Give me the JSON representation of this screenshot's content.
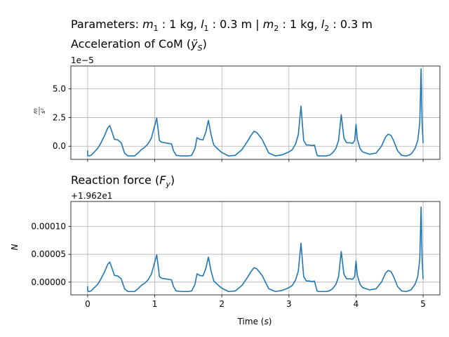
{
  "figure": {
    "suptitle": "Parameters: m₁ : 1 kg, l₁ : 0.3 m | m₂ : 1 kg, l₂ : 0.3 m",
    "suptitle_parts": {
      "p1": "Parameters: ",
      "m1_sym": "m",
      "m1_sub": "1",
      "m1_val": " :  1 kg, ",
      "l1_sym": "l",
      "l1_sub": "1",
      "l1_val": " :  0.3 m | ",
      "m2_sym": "m",
      "m2_sub": "2",
      "m2_val": " :  1 kg, ",
      "l2_sym": "l",
      "l2_sub": "2",
      "l2_val": " :  0.3 m"
    }
  },
  "chart_data": [
    {
      "type": "line",
      "title": "Acceleration of CoM (ÿS)",
      "title_parts": {
        "pre": "Acceleration of CoM (",
        "sym": "ÿ",
        "sub": "S",
        "post": ")"
      },
      "xlabel": "",
      "ylabel": "m/s²",
      "ylabel_parts": {
        "num": "m",
        "den": "s²"
      },
      "offset_text": "1e−5",
      "xlim": [
        -0.25,
        5.25
      ],
      "ylim": [
        -1.15,
        7.0
      ],
      "xticks": [
        0,
        1,
        2,
        3,
        4,
        5
      ],
      "xtick_labels": [
        "",
        "",
        "",
        "",
        "",
        ""
      ],
      "yticks": [
        0.0,
        2.5,
        5.0
      ],
      "ytick_labels": [
        "0.0",
        "2.5",
        "5.0"
      ],
      "grid": true,
      "color": "#1f77b4",
      "series": [
        {
          "x": [
            0.0,
            0.0,
            0.02,
            0.05,
            0.1,
            0.15,
            0.2,
            0.25,
            0.3,
            0.33,
            0.36,
            0.4,
            0.45,
            0.5,
            0.55,
            0.6,
            0.7,
            0.75,
            0.8,
            0.85,
            0.9,
            0.95,
            1.0,
            1.03,
            1.05,
            1.07,
            1.1,
            1.15,
            1.2,
            1.25,
            1.28,
            1.32,
            1.4,
            1.5,
            1.55,
            1.6,
            1.63,
            1.67,
            1.72,
            1.76,
            1.8,
            1.84,
            1.88,
            1.95,
            2.0,
            2.05,
            2.1,
            2.2,
            2.3,
            2.38,
            2.43,
            2.48,
            2.52,
            2.56,
            2.6,
            2.65,
            2.7,
            2.8,
            2.9,
            3.0,
            3.05,
            3.1,
            3.14,
            3.18,
            3.22,
            3.26,
            3.3,
            3.35,
            3.38,
            3.42,
            3.44,
            3.48,
            3.55,
            3.6,
            3.65,
            3.7,
            3.74,
            3.78,
            3.82,
            3.86,
            3.9,
            3.95,
            3.98,
            4.0,
            4.02,
            4.06,
            4.1,
            4.15,
            4.2,
            4.3,
            4.38,
            4.44,
            4.48,
            4.52,
            4.56,
            4.62,
            4.68,
            4.75,
            4.82,
            4.88,
            4.92,
            4.95,
            4.97,
            4.985,
            5.0
          ],
          "y": [
            -0.4,
            -0.8,
            -0.85,
            -0.8,
            -0.5,
            -0.2,
            0.3,
            0.9,
            1.6,
            1.8,
            1.3,
            0.6,
            0.55,
            0.3,
            -0.6,
            -0.85,
            -0.85,
            -0.6,
            -0.3,
            -0.1,
            0.2,
            0.7,
            1.8,
            2.45,
            1.5,
            0.5,
            0.35,
            0.3,
            0.25,
            0.2,
            -0.4,
            -0.8,
            -0.85,
            -0.85,
            -0.8,
            -0.2,
            0.75,
            0.6,
            0.55,
            1.2,
            2.25,
            1.0,
            0.1,
            -0.3,
            -0.55,
            -0.7,
            -0.85,
            -0.8,
            -0.3,
            0.4,
            0.9,
            1.3,
            1.2,
            0.9,
            0.6,
            0.0,
            -0.6,
            -0.85,
            -0.75,
            -0.5,
            -0.3,
            0.2,
            1.0,
            3.5,
            0.5,
            0.1,
            0.1,
            0.05,
            0.1,
            -0.8,
            -0.85,
            -0.85,
            -0.85,
            -0.8,
            -0.6,
            -0.2,
            0.5,
            2.75,
            0.7,
            0.3,
            0.3,
            0.25,
            0.5,
            1.9,
            0.6,
            -0.2,
            -0.5,
            -0.6,
            -0.7,
            -0.6,
            0.0,
            0.8,
            1.05,
            0.95,
            0.5,
            -0.4,
            -0.8,
            -0.85,
            -0.7,
            -0.2,
            0.5,
            2.0,
            6.75,
            2.0,
            0.3
          ]
        }
      ]
    },
    {
      "type": "line",
      "title": "Reaction force (Fy)",
      "title_parts": {
        "pre": "Reaction force (",
        "sym": "F",
        "sub": "y",
        "post": ")"
      },
      "xlabel": "Time (s)",
      "xlabel_parts": {
        "pre": "Time (",
        "sym": "s",
        "post": ")"
      },
      "ylabel": "N",
      "offset_text": "+1.962e1",
      "xlim": [
        -0.25,
        5.25
      ],
      "ylim": [
        -2.3e-05,
        0.000145
      ],
      "xticks": [
        0,
        1,
        2,
        3,
        4,
        5
      ],
      "xtick_labels": [
        "0",
        "1",
        "2",
        "3",
        "4",
        "5"
      ],
      "yticks": [
        0.0,
        5e-05,
        0.0001
      ],
      "ytick_labels": [
        "0.00000",
        "0.00005",
        "0.00010"
      ],
      "grid": true,
      "color": "#1f77b4",
      "series": [
        {
          "x": [
            0.0,
            0.0,
            0.02,
            0.05,
            0.1,
            0.15,
            0.2,
            0.25,
            0.3,
            0.33,
            0.36,
            0.4,
            0.45,
            0.5,
            0.55,
            0.6,
            0.7,
            0.75,
            0.8,
            0.85,
            0.9,
            0.95,
            1.0,
            1.03,
            1.05,
            1.07,
            1.1,
            1.15,
            1.2,
            1.25,
            1.28,
            1.32,
            1.4,
            1.5,
            1.55,
            1.6,
            1.63,
            1.67,
            1.72,
            1.76,
            1.8,
            1.84,
            1.88,
            1.95,
            2.0,
            2.05,
            2.1,
            2.2,
            2.3,
            2.38,
            2.43,
            2.48,
            2.52,
            2.56,
            2.6,
            2.65,
            2.7,
            2.8,
            2.9,
            3.0,
            3.05,
            3.1,
            3.14,
            3.18,
            3.22,
            3.26,
            3.3,
            3.35,
            3.38,
            3.42,
            3.44,
            3.48,
            3.55,
            3.6,
            3.65,
            3.7,
            3.74,
            3.78,
            3.82,
            3.86,
            3.9,
            3.95,
            3.98,
            4.0,
            4.02,
            4.06,
            4.1,
            4.15,
            4.2,
            4.3,
            4.38,
            4.44,
            4.48,
            4.52,
            4.56,
            4.62,
            4.68,
            4.75,
            4.82,
            4.88,
            4.92,
            4.95,
            4.97,
            4.985,
            5.0
          ],
          "y": [
            -8e-06,
            -1.6e-05,
            -1.7e-05,
            -1.6e-05,
            -1e-05,
            -4e-06,
            6e-06,
            1.8e-05,
            3.2e-05,
            3.6e-05,
            2.6e-05,
            1.2e-05,
            1.1e-05,
            6e-06,
            -1.2e-05,
            -1.7e-05,
            -1.7e-05,
            -1.2e-05,
            -6e-06,
            -2e-06,
            4e-06,
            1.4e-05,
            3.6e-05,
            4.9e-05,
            3e-05,
            1e-05,
            7e-06,
            6e-06,
            5e-06,
            4e-06,
            -8e-06,
            -1.6e-05,
            -1.7e-05,
            -1.7e-05,
            -1.6e-05,
            -4e-06,
            1.5e-05,
            1.2e-05,
            1.1e-05,
            2.4e-05,
            4.5e-05,
            2e-05,
            2e-06,
            -6e-06,
            -1.1e-05,
            -1.4e-05,
            -1.7e-05,
            -1.6e-05,
            -6e-06,
            8e-06,
            1.8e-05,
            2.6e-05,
            2.4e-05,
            1.8e-05,
            1.2e-05,
            0.0,
            -1.2e-05,
            -1.7e-05,
            -1.5e-05,
            -1e-05,
            -6e-06,
            4e-06,
            2e-05,
            7e-05,
            1e-05,
            2e-06,
            2e-06,
            1e-06,
            2e-06,
            -1.6e-05,
            -1.7e-05,
            -1.7e-05,
            -1.7e-05,
            -1.6e-05,
            -1.2e-05,
            -4e-06,
            1e-05,
            5.5e-05,
            1.4e-05,
            6e-06,
            6e-06,
            5e-06,
            1e-05,
            3.8e-05,
            1.2e-05,
            -4e-06,
            -1e-05,
            -1.2e-05,
            -1.4e-05,
            -1.2e-05,
            0.0,
            1.6e-05,
            2.1e-05,
            1.9e-05,
            1e-05,
            -8e-06,
            -1.6e-05,
            -1.7e-05,
            -1.4e-05,
            -4e-06,
            1e-05,
            4e-05,
            0.000135,
            4e-05,
            6e-06
          ]
        }
      ]
    }
  ]
}
